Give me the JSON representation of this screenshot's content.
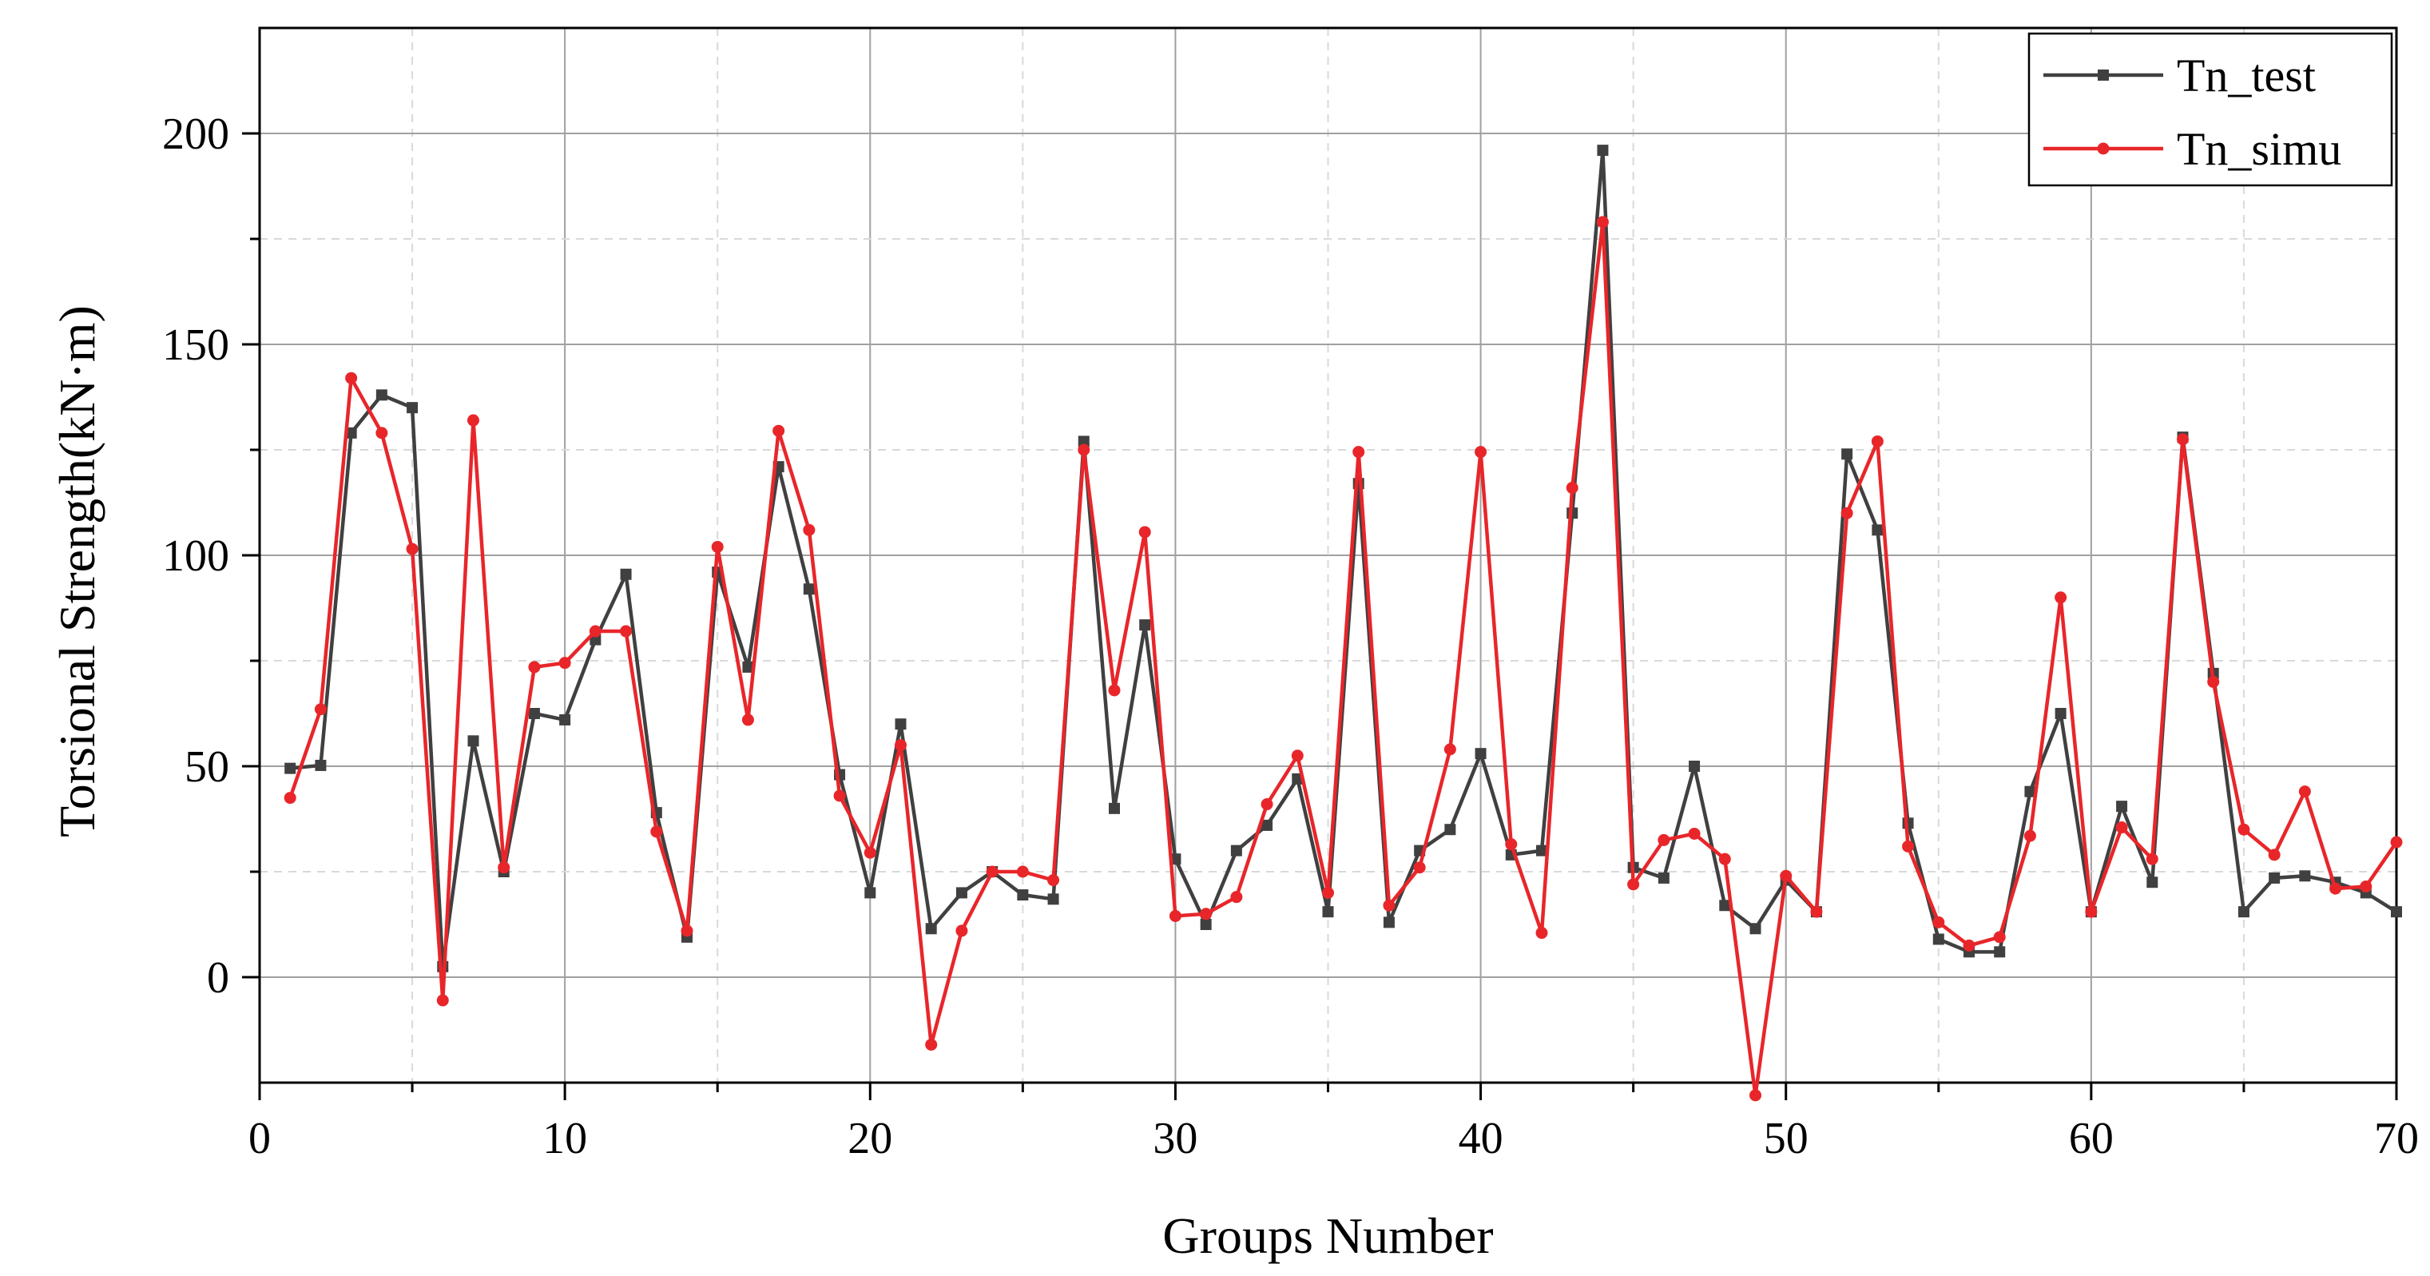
{
  "chart_data": {
    "type": "line",
    "title": "",
    "xlabel": "Groups Number",
    "ylabel": "Torsional Strength(kN·m)",
    "xlim": [
      0,
      70
    ],
    "ylim": [
      -25,
      225
    ],
    "x_ticks": [
      0,
      10,
      20,
      30,
      40,
      50,
      60,
      70
    ],
    "y_ticks": [
      0,
      50,
      100,
      150,
      200
    ],
    "grid": true,
    "legend_position": "top-right",
    "x": [
      1,
      2,
      3,
      4,
      5,
      6,
      7,
      8,
      9,
      10,
      11,
      12,
      13,
      14,
      15,
      16,
      17,
      18,
      19,
      20,
      21,
      22,
      23,
      24,
      25,
      26,
      27,
      28,
      29,
      30,
      31,
      32,
      33,
      34,
      35,
      36,
      37,
      38,
      39,
      40,
      41,
      42,
      43,
      44,
      45,
      46,
      47,
      48,
      49,
      50,
      51,
      52,
      53,
      54,
      55,
      56,
      57,
      58,
      59,
      60,
      61,
      62,
      63,
      64,
      65,
      66,
      67,
      68,
      69,
      70
    ],
    "series": [
      {
        "name": "Tn_test",
        "color": "#404040",
        "marker": "square",
        "values": [
          49.5,
          50.2,
          129,
          138,
          135,
          2.5,
          56,
          25,
          62.5,
          61,
          80,
          95.5,
          39,
          9.5,
          96,
          73.5,
          121,
          92,
          48,
          20,
          60,
          11.5,
          20,
          25,
          19.5,
          18.5,
          127,
          40,
          83.5,
          28,
          12.5,
          30,
          36,
          47,
          15.5,
          117,
          13,
          30,
          35,
          53,
          29,
          30,
          110,
          196,
          26,
          23.5,
          50,
          17,
          11.5,
          23,
          15.5,
          124,
          106,
          36.5,
          9,
          6,
          6,
          44,
          62.5,
          15.5,
          40.5,
          22.5,
          128,
          72,
          15.5,
          23.5,
          24,
          22.5,
          20,
          15.5
        ]
      },
      {
        "name": "Tn_simu",
        "color": "#e8262a",
        "marker": "circle",
        "values": [
          42.5,
          63.5,
          142,
          129,
          101.5,
          -5.5,
          132,
          26,
          73.5,
          74.5,
          82,
          82,
          34.5,
          11,
          102,
          61,
          129.5,
          106,
          43,
          29.5,
          55,
          -16,
          11,
          25,
          25,
          23,
          125,
          68,
          105.5,
          14.5,
          15,
          19,
          41,
          52.5,
          20,
          124.5,
          17,
          26,
          54,
          124.5,
          31.5,
          10.5,
          116,
          179,
          22,
          32.5,
          34,
          28,
          -28,
          24,
          15.5,
          110,
          127,
          31,
          13,
          7.5,
          9.5,
          33.5,
          90,
          15.5,
          35.5,
          28,
          127.5,
          70,
          35,
          29,
          44,
          21,
          21.5,
          32
        ]
      }
    ]
  }
}
